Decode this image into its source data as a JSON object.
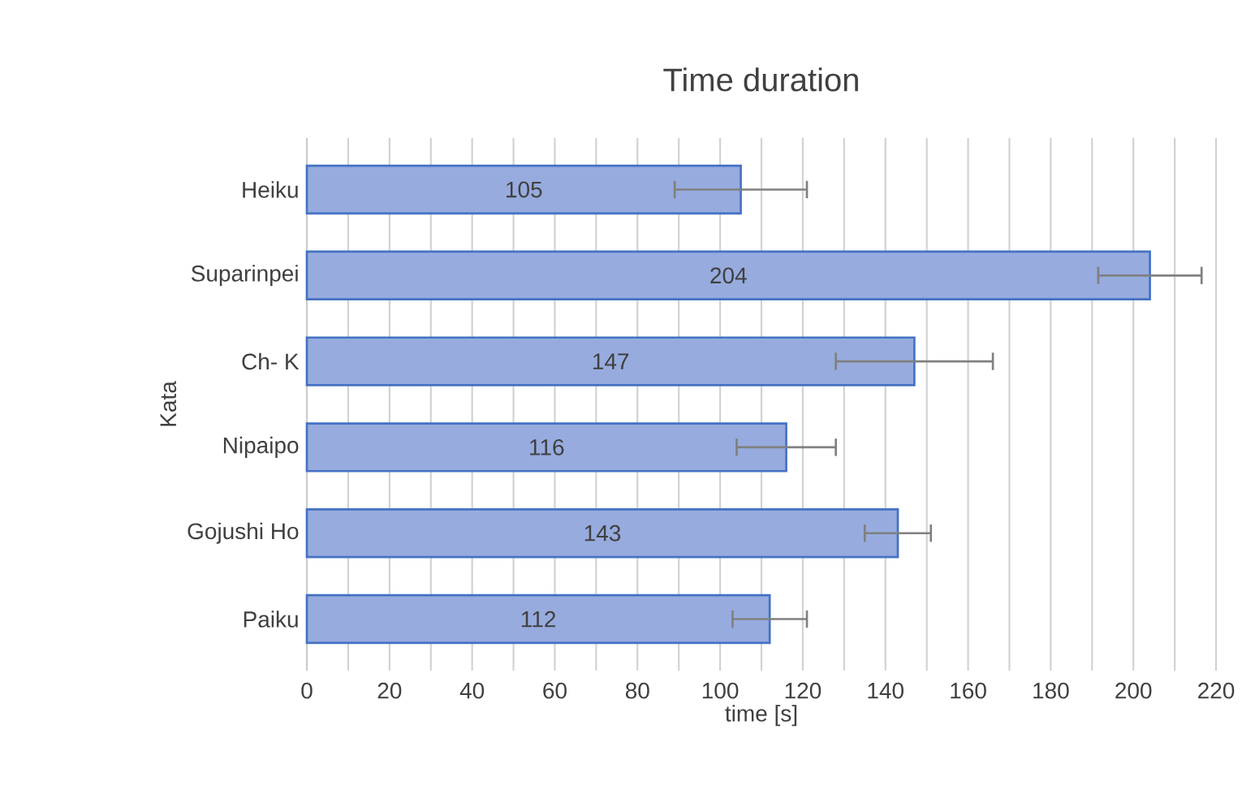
{
  "chart_data": {
    "type": "bar",
    "orientation": "horizontal",
    "title": "Time duration",
    "xlabel": "time [s]",
    "ylabel": "Kata",
    "categories": [
      "Heiku",
      "Suparinpei",
      "Ch- K",
      "Nipaipo",
      "Gojushi Ho",
      "Paiku"
    ],
    "values": [
      105,
      204,
      147,
      116,
      143,
      112
    ],
    "errors": [
      16,
      12.5,
      19,
      12,
      8,
      9
    ],
    "color": "#97abde",
    "data_labels": true,
    "grid": "x",
    "xlim": [
      0,
      220
    ],
    "xticks": [
      0,
      {
        "value": 10,
        "label": null
      },
      20,
      {
        "value": 30,
        "label": null
      },
      40,
      {
        "value": 50,
        "label": null
      },
      60,
      {
        "value": 70,
        "label": null
      },
      80,
      {
        "value": 90,
        "label": null
      },
      100,
      {
        "value": 110,
        "label": null
      },
      120,
      {
        "value": 130,
        "label": null
      },
      140,
      {
        "value": 150,
        "label": null
      },
      160,
      {
        "value": 170,
        "label": null
      },
      180,
      {
        "value": 190,
        "label": null
      },
      200,
      {
        "value": 210,
        "label": null
      },
      220
    ]
  }
}
